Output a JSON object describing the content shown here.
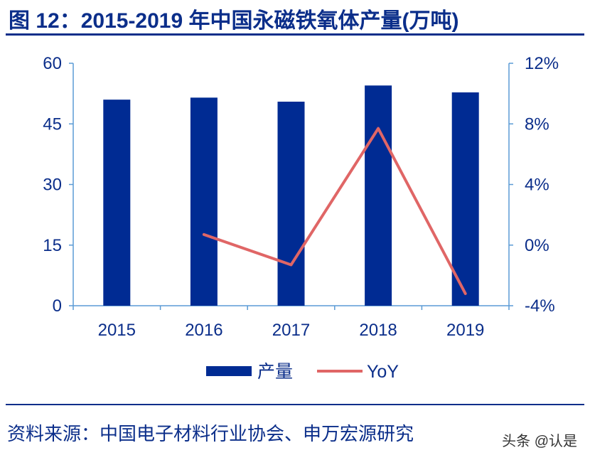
{
  "title": "图 12：2015-2019 年中国永磁铁氧体产量(万吨)",
  "source": "资料来源：中国电子材料行业协会、申万宏源研究",
  "watermark": "头条 @认是",
  "colors": {
    "bar": "#002b93",
    "line": "#e06666",
    "axis": "#5b9bd5",
    "text": "#0b2e8a"
  },
  "chart_data": {
    "type": "bar",
    "categories": [
      "2015",
      "2016",
      "2017",
      "2018",
      "2019"
    ],
    "series": [
      {
        "name": "产量",
        "type": "bar",
        "axis": "left",
        "values": [
          51,
          51.5,
          50.5,
          54.5,
          52.8
        ]
      },
      {
        "name": "YoY",
        "type": "line",
        "axis": "right",
        "values": [
          null,
          0.7,
          -1.3,
          7.7,
          -3.2
        ]
      }
    ],
    "ylim": [
      0,
      60
    ],
    "yticks": [
      "0",
      "15",
      "30",
      "45",
      "60"
    ],
    "y2lim": [
      -4,
      12
    ],
    "y2ticks": [
      "-4%",
      "0%",
      "4%",
      "8%",
      "12%"
    ],
    "legend_position": "bottom",
    "grid": false
  }
}
